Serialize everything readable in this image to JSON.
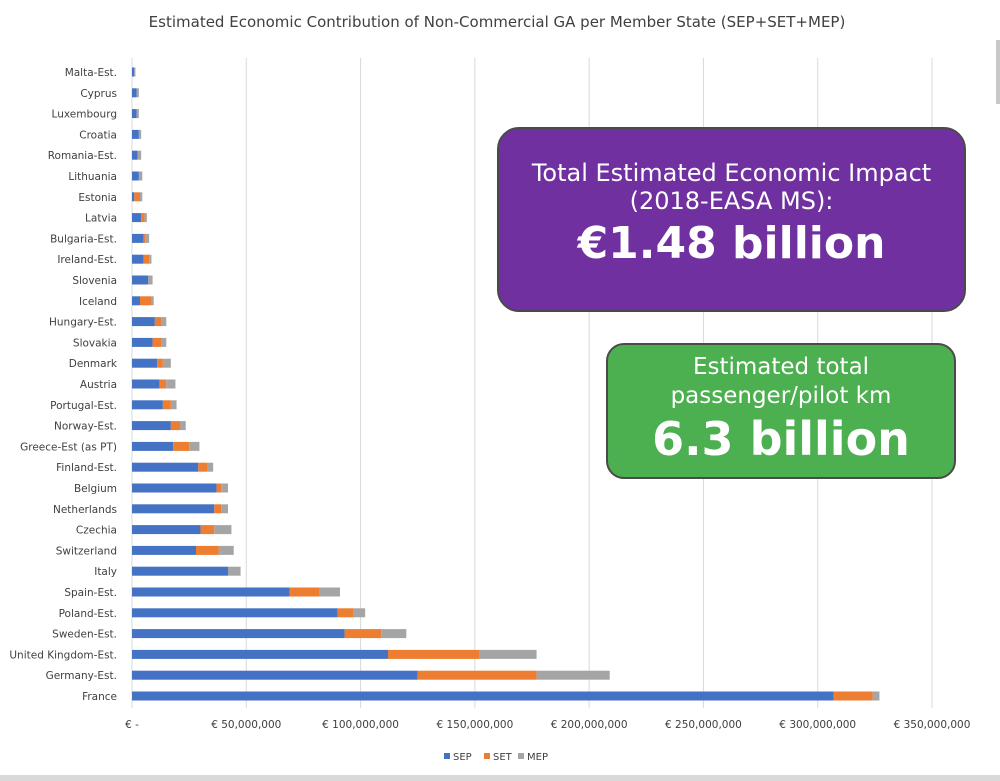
{
  "chart_data": {
    "type": "bar",
    "orientation": "horizontal",
    "stacked": true,
    "title": "Estimated Economic Contribution of Non-Commercial GA per Member State (SEP+SET+MEP)",
    "categories": [
      "Malta-Est.",
      "Cyprus",
      "Luxembourg",
      "Croatia",
      "Romania-Est.",
      "Lithuania",
      "Estonia",
      "Latvia",
      "Bulgaria-Est.",
      "Ireland-Est.",
      "Slovenia",
      "Iceland",
      "Hungary-Est.",
      "Slovakia",
      "Denmark",
      "Austria",
      "Portugal-Est.",
      "Norway-Est.",
      "Greece-Est (as PT)",
      "Finland-Est.",
      "Belgium",
      "Netherlands",
      "Czechia",
      "Switzerland",
      "Italy",
      "Spain-Est.",
      "Poland-Est.",
      "Sweden-Est.",
      "United Kingdom-Est.",
      "Germany-Est.",
      "France"
    ],
    "series": [
      {
        "name": "SEP",
        "color": "#4472c4",
        "values": [
          1000000,
          2000000,
          2000000,
          3000000,
          2500000,
          3000000,
          1000000,
          4000000,
          5000000,
          5000000,
          7000000,
          3500000,
          10000000,
          9000000,
          11000000,
          12000000,
          13500000,
          17000000,
          18000000,
          29000000,
          37000000,
          36000000,
          30000000,
          28000000,
          42000000,
          69000000,
          90000000,
          93000000,
          112000000,
          125000000,
          307000000
        ]
      },
      {
        "name": "SET",
        "color": "#ed7d31",
        "values": [
          0,
          0,
          0,
          0,
          0,
          0,
          2500000,
          1500000,
          1000000,
          2500000,
          0,
          5000000,
          3000000,
          4000000,
          2500000,
          3000000,
          3500000,
          4000000,
          7000000,
          4000000,
          2000000,
          3000000,
          6000000,
          10000000,
          0,
          13000000,
          7000000,
          16000000,
          40000000,
          52000000,
          17000000
        ]
      },
      {
        "name": "MEP",
        "color": "#a5a5a5",
        "values": [
          500000,
          1000000,
          1000000,
          1000000,
          1500000,
          1500000,
          1000000,
          1000000,
          1500000,
          1000000,
          2000000,
          1000000,
          2000000,
          2000000,
          3500000,
          4000000,
          2500000,
          2500000,
          4500000,
          2500000,
          3000000,
          3000000,
          7500000,
          6500000,
          5500000,
          9000000,
          5000000,
          11000000,
          25000000,
          32000000,
          3000000
        ]
      }
    ],
    "x_tick_labels": [
      "€ -",
      "€ 50,000,000",
      "€ 100,000,000",
      "€ 150,000,000",
      "€ 200,000,000",
      "€ 250,000,000",
      "€ 300,000,000",
      "€ 350,000,000"
    ],
    "xlim": [
      0,
      350000000
    ],
    "grid": true,
    "legend_position": "bottom"
  },
  "callouts": {
    "impact": {
      "line1": "Total Estimated Economic Impact",
      "line2": "(2018-EASA MS):",
      "value": "€1.48 billion",
      "color": "#7030a0"
    },
    "distance": {
      "line1": "Estimated total",
      "line2": "passenger/pilot km",
      "value": "6.3 billion",
      "color": "#4caf50"
    }
  }
}
